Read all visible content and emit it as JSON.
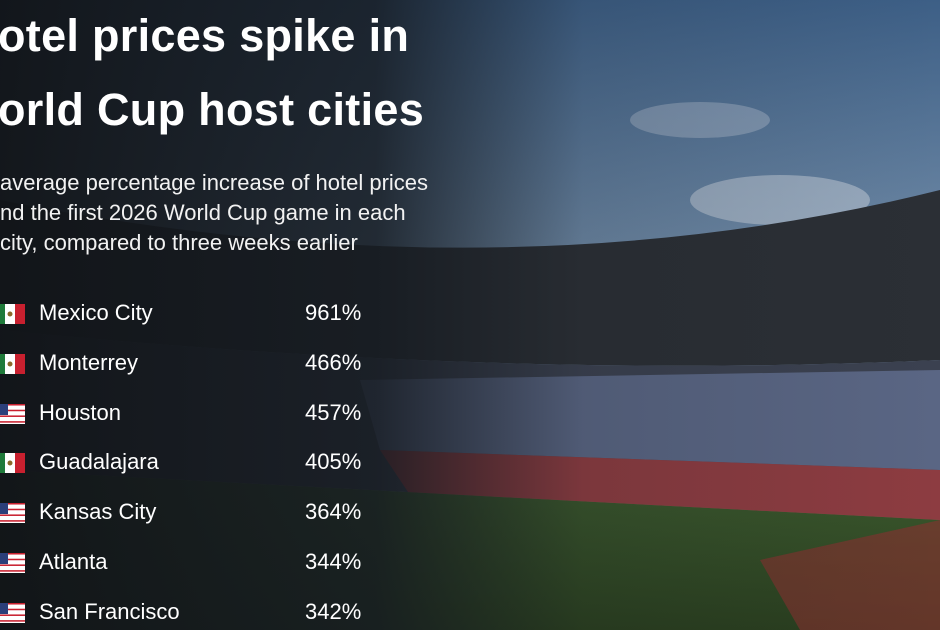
{
  "title": [
    "otel prices spike in",
    "orld Cup host cities"
  ],
  "subtitle": [
    "average percentage increase of hotel prices",
    "nd the first 2026 World Cup game in each",
    "city, compared to three weeks earlier"
  ],
  "table": {
    "rows": [
      [
        "Mexico City",
        "961%"
      ],
      [
        "Monterrey",
        "466%"
      ],
      [
        "Houston",
        "457%"
      ],
      [
        "Guadalajara",
        "405%"
      ],
      [
        "Kansas City",
        "364%"
      ],
      [
        "Atlanta",
        "344%"
      ],
      [
        "San Francisco",
        "342%"
      ]
    ]
  }
}
